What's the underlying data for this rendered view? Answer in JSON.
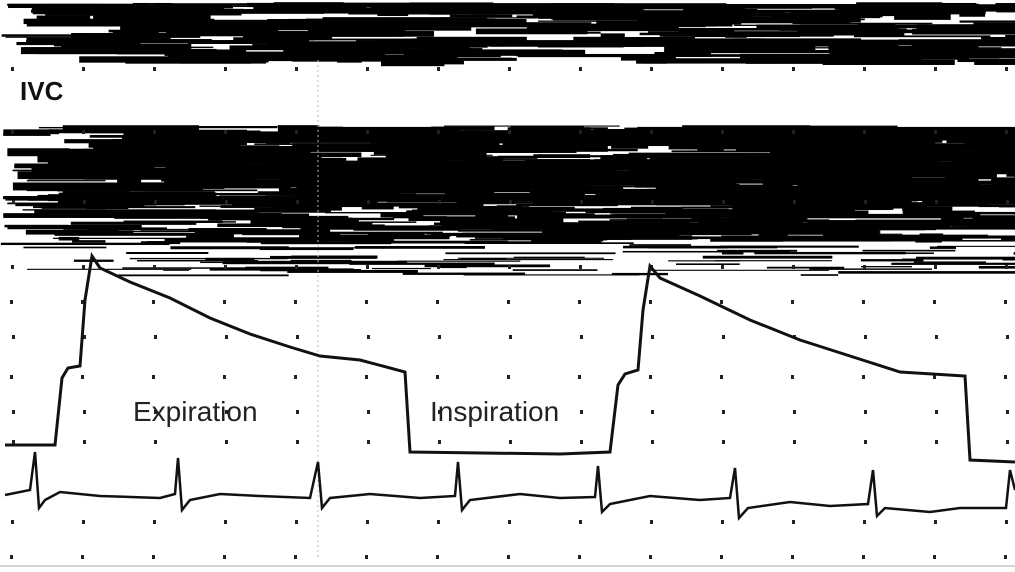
{
  "labels": {
    "ivc": "IVC",
    "expiration": "Expiration",
    "inspiration": "Inspiration"
  }
}
